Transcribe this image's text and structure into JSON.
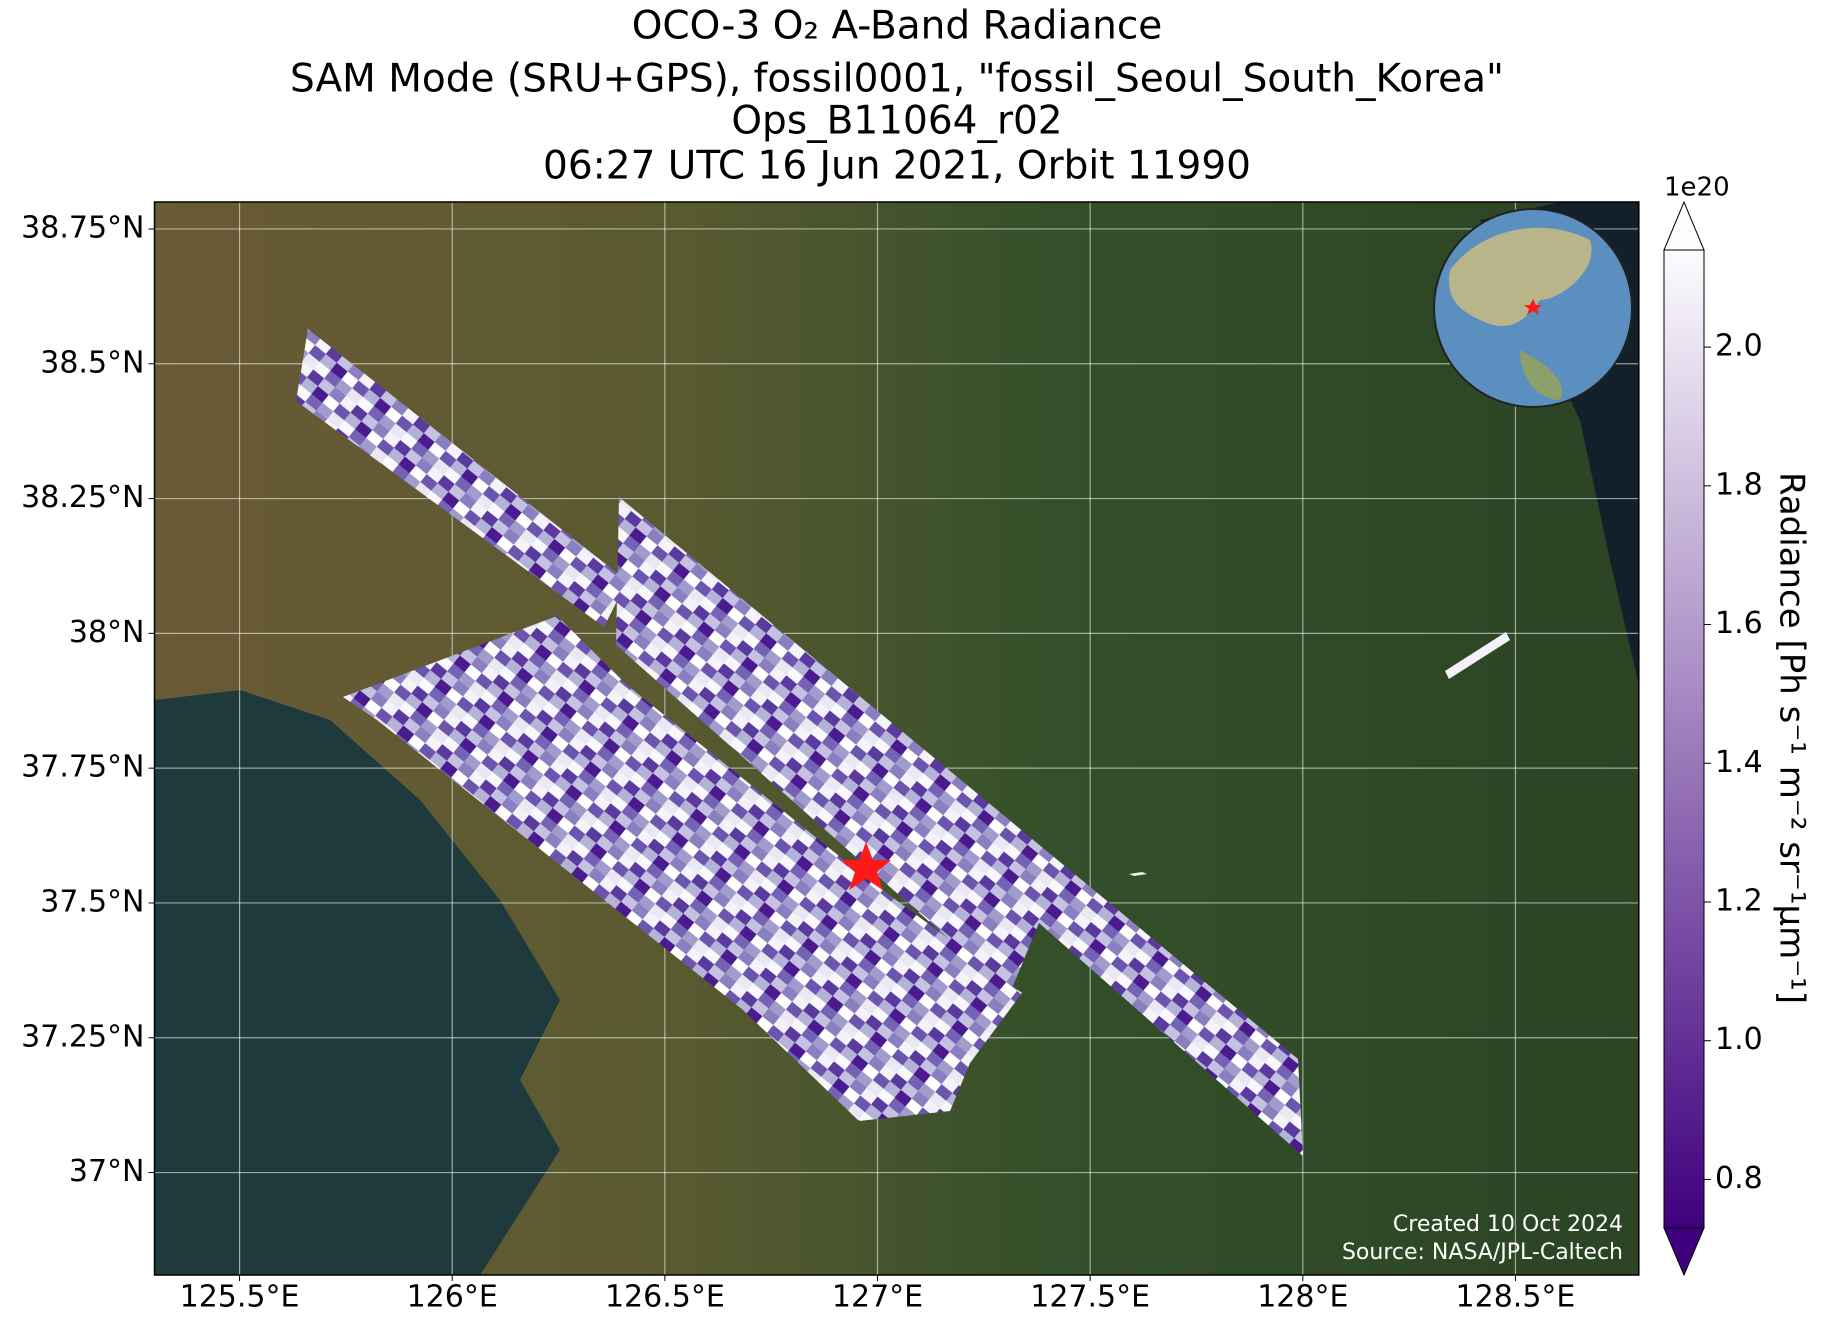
{
  "title": [
    "OCO-3 O₂ A-Band Radiance",
    "SAM Mode (SRU+GPS), fossil0001, \"fossil_Seoul_South_Korea\"",
    "Ops_B11064_r02",
    "06:27 UTC 16 Jun 2021, Orbit 11990"
  ],
  "map": {
    "xlim": [
      125.3,
      128.79
    ],
    "ylim": [
      36.81,
      38.8
    ],
    "xticks": [
      {
        "value": 125.5,
        "label": "125.5°E"
      },
      {
        "value": 126,
        "label": "126°E"
      },
      {
        "value": 126.5,
        "label": "126.5°E"
      },
      {
        "value": 127,
        "label": "127°E"
      },
      {
        "value": 127.5,
        "label": "127.5°E"
      },
      {
        "value": 128,
        "label": "128°E"
      },
      {
        "value": 128.5,
        "label": "128.5°E"
      }
    ],
    "yticks": [
      {
        "value": 37,
        "label": "37°N"
      },
      {
        "value": 37.25,
        "label": "37.25°N"
      },
      {
        "value": 37.5,
        "label": "37.5°N"
      },
      {
        "value": 37.75,
        "label": "37.75°N"
      },
      {
        "value": 38,
        "label": "38°N"
      },
      {
        "value": 38.25,
        "label": "38.25°N"
      },
      {
        "value": 38.5,
        "label": "38.5°N"
      },
      {
        "value": 38.75,
        "label": "38.75°N"
      }
    ],
    "grid": true
  },
  "colorbar": {
    "lim": [
      0.73,
      2.14
    ],
    "colors": [
      "#3f007d",
      "#fcfbfd"
    ],
    "ticks": [
      0.8,
      {
        "value": 1.0,
        "label": "1.0"
      },
      1.2,
      1.4,
      1.6,
      1.8,
      {
        "value": 2.0,
        "label": "2.0"
      }
    ],
    "label": "Radiance [Ph s⁻¹ m⁻² sr⁻¹μm⁻¹]",
    "offset_label": "1e20"
  },
  "credits": [
    "Created 10 Oct 2024",
    "Source: NASA/JPL-Caltech"
  ]
}
